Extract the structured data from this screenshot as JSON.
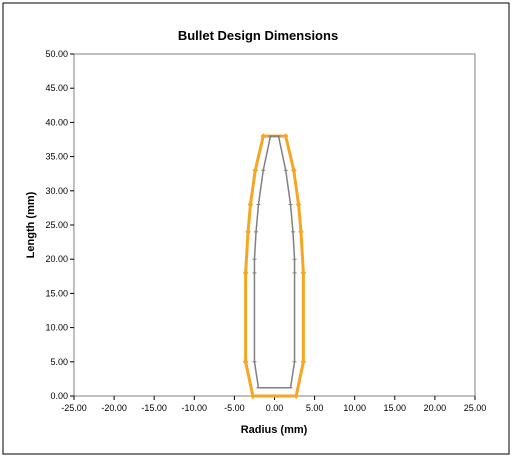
{
  "chart_data": {
    "type": "scatter",
    "title": "Bullet Design Dimensions",
    "xlabel": "Radius (mm)",
    "ylabel": "Length (mm)",
    "xlim": [
      -25,
      25
    ],
    "ylim": [
      0,
      50
    ],
    "x_ticks": [
      "-25.00",
      "-20.00",
      "-15.00",
      "-10.00",
      "-5.00",
      "0.00",
      "5.00",
      "10.00",
      "15.00",
      "20.00",
      "25.00"
    ],
    "y_ticks": [
      "0.00",
      "5.00",
      "10.00",
      "15.00",
      "20.00",
      "25.00",
      "30.00",
      "35.00",
      "40.00",
      "45.00",
      "50.00"
    ],
    "grid": false,
    "legend": "none",
    "series": [
      {
        "color": "#F5A623",
        "points": [
          [
            -2.7,
            0
          ],
          [
            -3.6,
            5
          ],
          [
            -3.6,
            18
          ],
          [
            -3.3,
            24
          ],
          [
            -3.0,
            28
          ],
          [
            -2.4,
            33
          ],
          [
            -1.4,
            38
          ],
          [
            1.4,
            38
          ],
          [
            2.4,
            33
          ],
          [
            3.0,
            28
          ],
          [
            3.3,
            24
          ],
          [
            3.6,
            18
          ],
          [
            3.6,
            5
          ],
          [
            2.7,
            0
          ],
          [
            -2.7,
            0
          ]
        ]
      },
      {
        "color": "#808080",
        "points": [
          [
            -2.0,
            1.2
          ],
          [
            -2.5,
            5
          ],
          [
            -2.5,
            18
          ],
          [
            -2.5,
            20
          ],
          [
            -2.3,
            24
          ],
          [
            -2.0,
            28
          ],
          [
            -1.4,
            33
          ],
          [
            -0.5,
            38
          ],
          [
            0,
            38
          ],
          [
            0.5,
            38
          ],
          [
            1.4,
            33
          ],
          [
            2.0,
            28
          ],
          [
            2.3,
            24
          ],
          [
            2.5,
            20
          ],
          [
            2.5,
            18
          ],
          [
            2.5,
            5
          ],
          [
            2.0,
            1.2
          ],
          [
            0,
            1.2
          ],
          [
            -2.0,
            1.2
          ]
        ]
      }
    ]
  }
}
